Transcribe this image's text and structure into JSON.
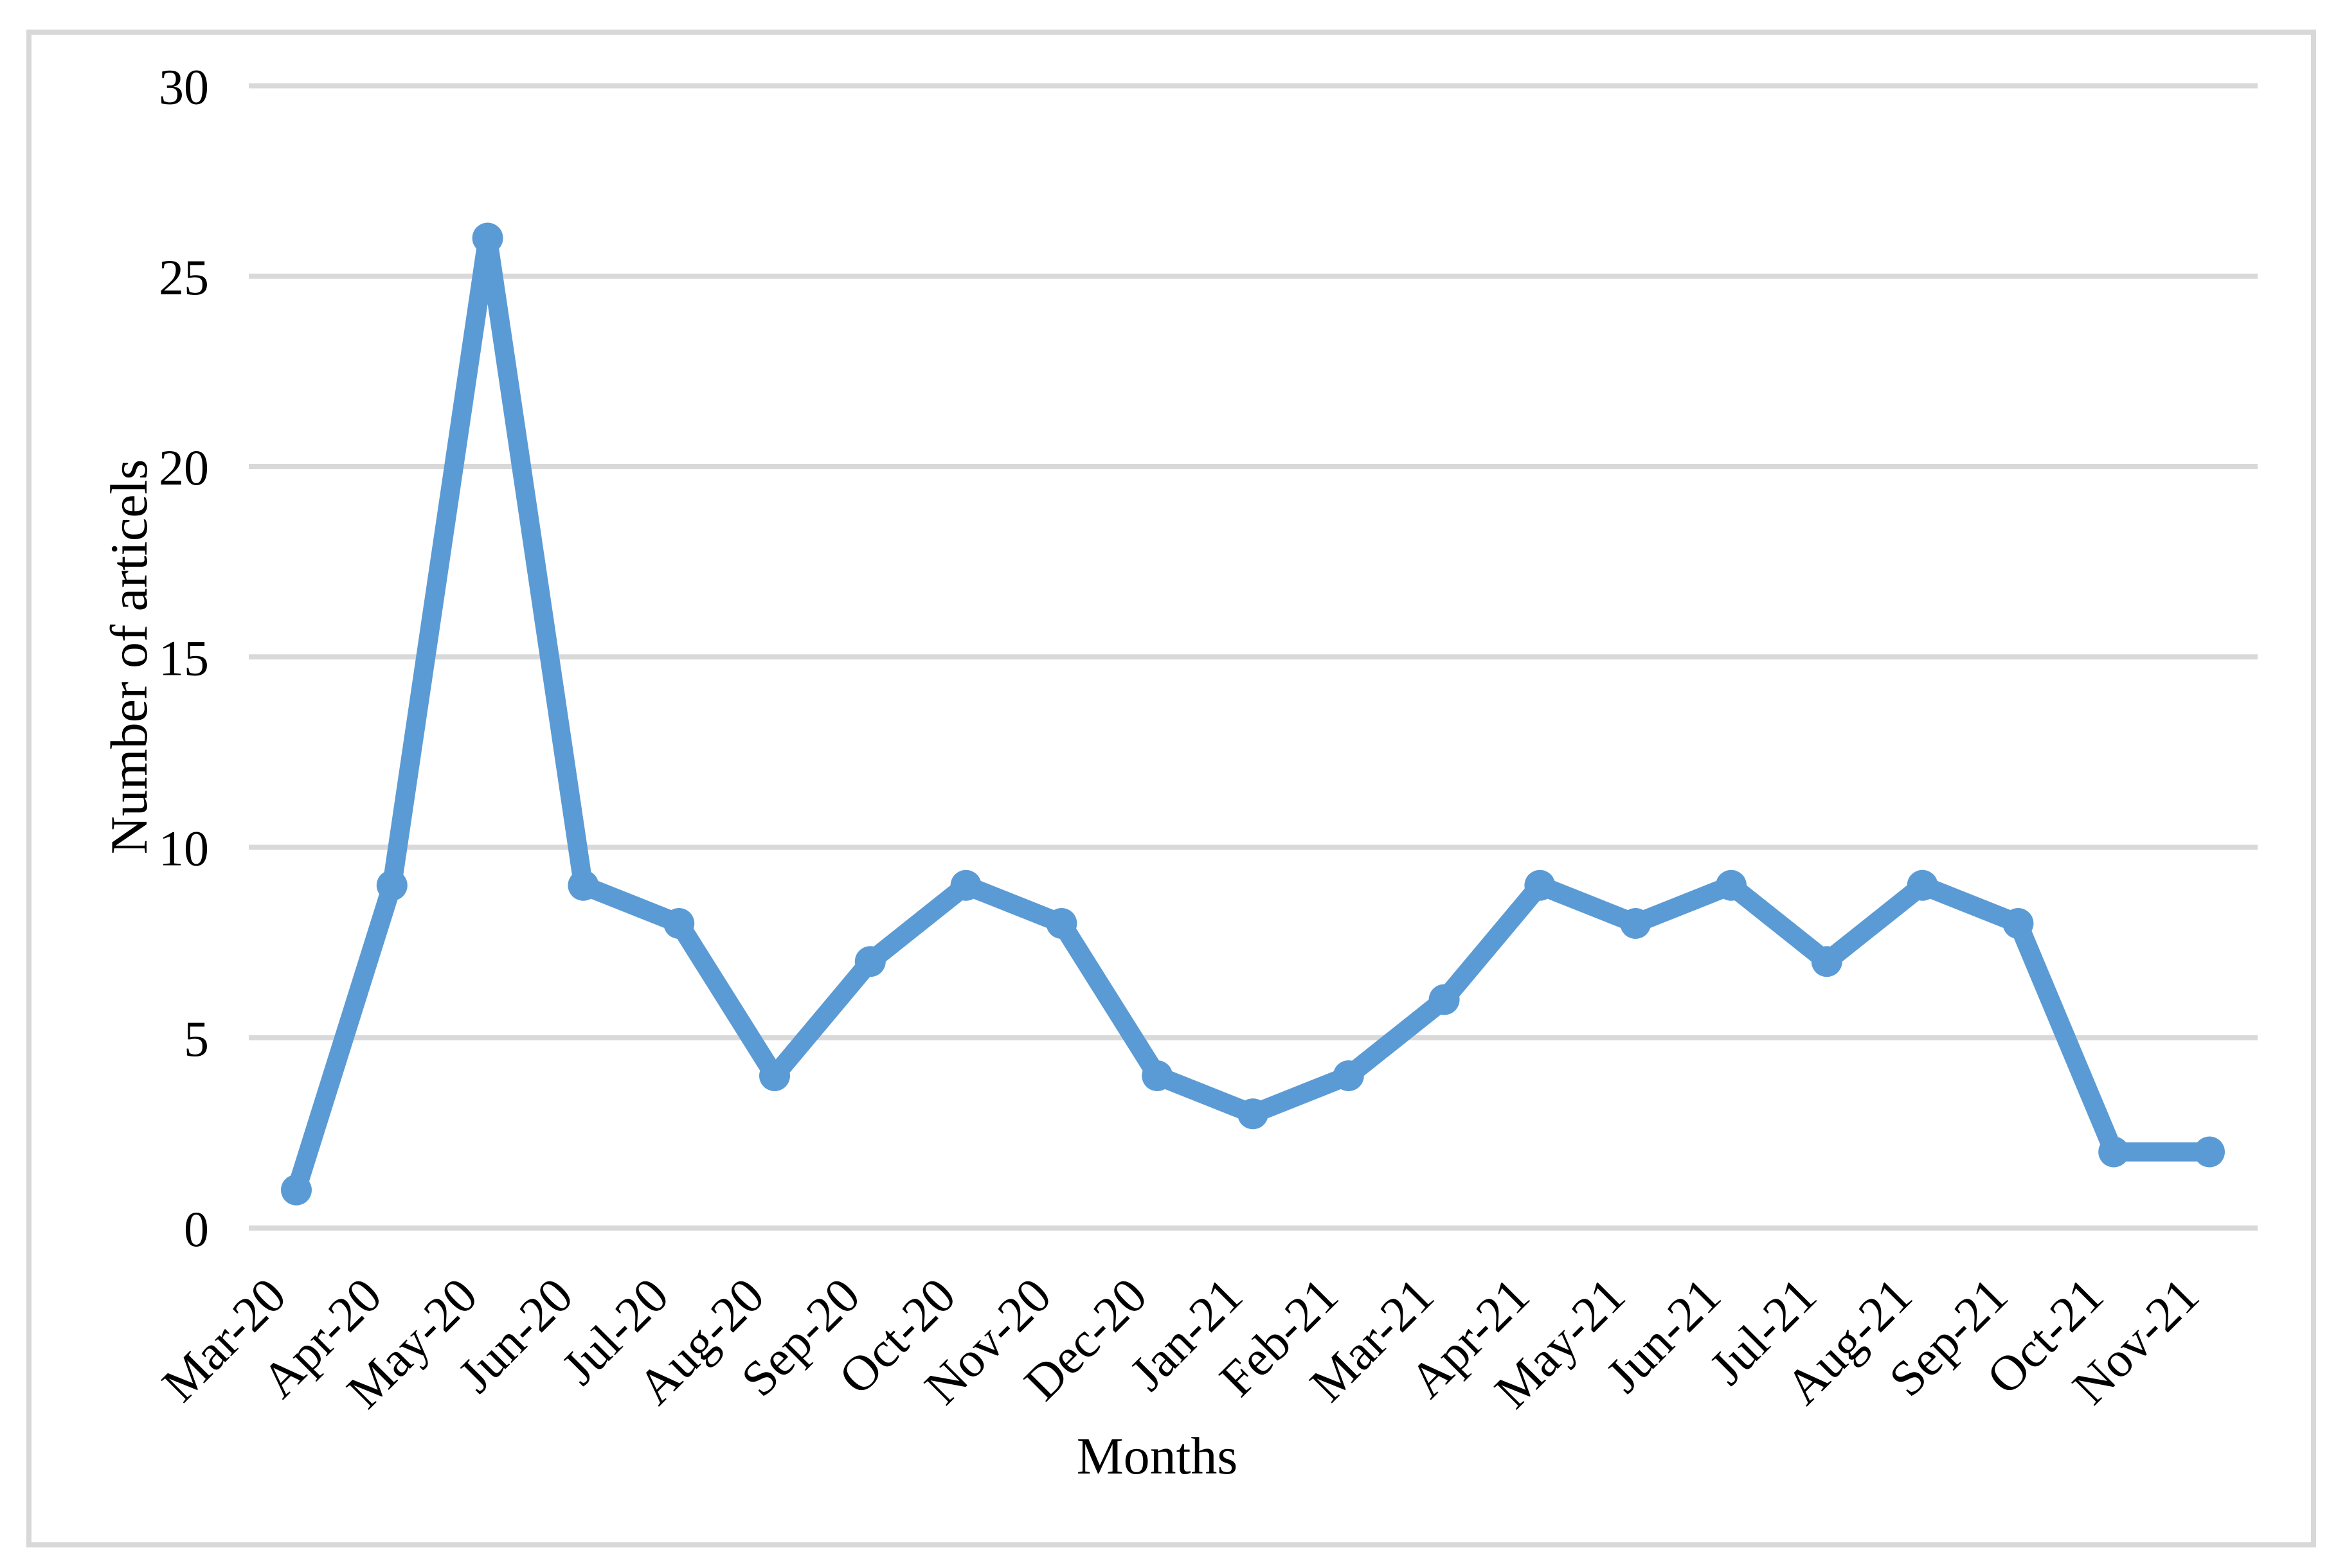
{
  "chart_data": {
    "type": "line",
    "title": "",
    "xlabel": "Months",
    "ylabel": "Number of articels",
    "categories": [
      "Mar-20",
      "Apr-20",
      "May-20",
      "Jun-20",
      "Jul-20",
      "Aug-20",
      "Sep-20",
      "Oct-20",
      "Nov-20",
      "Dec-20",
      "Jan-21",
      "Feb-21",
      "Mar-21",
      "Apr-21",
      "May-21",
      "Jun-21",
      "Jul-21",
      "Aug-21",
      "Sep-21",
      "Oct-21",
      "Nov-21"
    ],
    "values": [
      1,
      9,
      26,
      9,
      8,
      4,
      7,
      9,
      8,
      4,
      3,
      4,
      6,
      9,
      8,
      9,
      7,
      9,
      8,
      2,
      2
    ],
    "ylim": [
      0,
      30
    ],
    "yticks": [
      0,
      5,
      10,
      15,
      20,
      25,
      30
    ],
    "grid": "horizontal",
    "legend": "none",
    "series_color": "#5B9BD5",
    "gridline_color": "#D9D9D9",
    "border_color": "#D8D8D8",
    "text_color": "#000000",
    "x_tick_rotation_deg": -45
  }
}
